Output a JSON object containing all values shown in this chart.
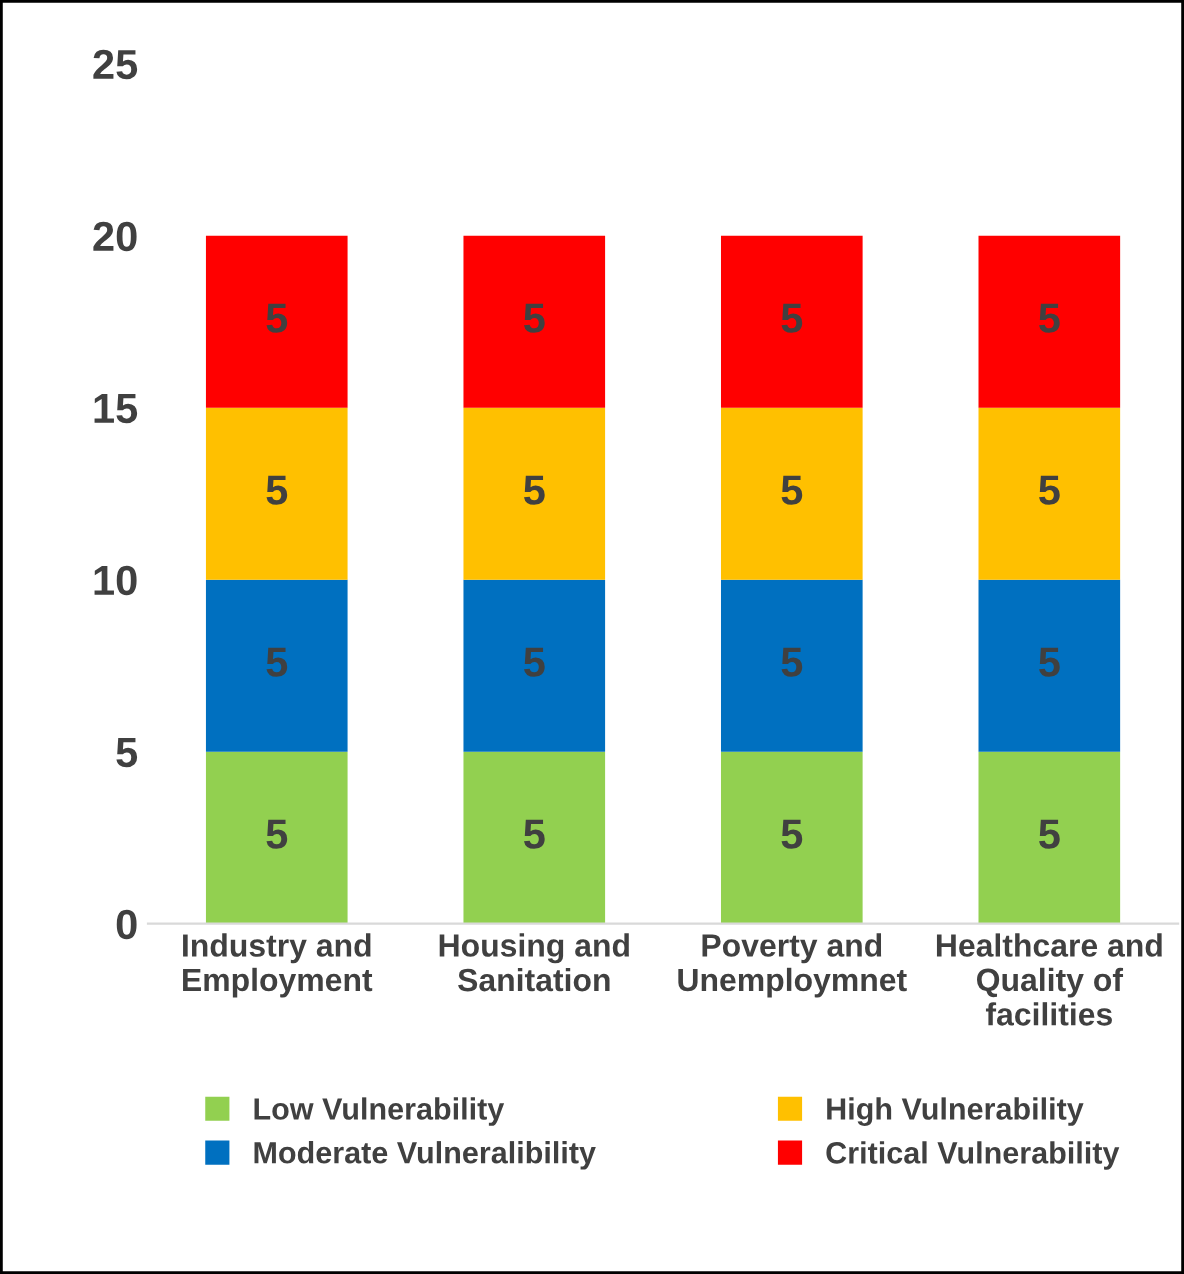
{
  "chart_data": {
    "type": "bar",
    "stacked": true,
    "data_labels": true,
    "grid": false,
    "legend": "bottom",
    "categories": [
      "Industry and\nEmployment",
      "Housing and\nSanitation",
      "Poverty and\nUnemploymnet",
      "Healthcare and\nQuality of\nfacilities"
    ],
    "series": [
      {
        "name": "Low Vulnerability",
        "color": "#92d050",
        "values": [
          5,
          5,
          5,
          5
        ]
      },
      {
        "name": "Moderate Vulneralibility",
        "color": "#0070c0",
        "values": [
          5,
          5,
          5,
          5
        ]
      },
      {
        "name": "High Vulnerability",
        "color": "#ffc000",
        "values": [
          5,
          5,
          5,
          5
        ]
      },
      {
        "name": "Critical Vulnerability",
        "color": "#ff0000",
        "values": [
          5,
          5,
          5,
          5
        ]
      }
    ],
    "ylim": [
      0,
      25
    ],
    "yticks": [
      0,
      5,
      10,
      15,
      20,
      25
    ]
  }
}
